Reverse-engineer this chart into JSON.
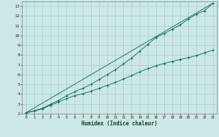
{
  "title": "",
  "xlabel": "Humidex (Indice chaleur)",
  "bg_color": "#cce8e6",
  "grid_color": "#aacfcc",
  "line_color": "#1a6b5a",
  "xlim": [
    -0.5,
    23.5
  ],
  "ylim": [
    2,
    13.5
  ],
  "xticks": [
    0,
    1,
    2,
    3,
    4,
    5,
    6,
    7,
    8,
    9,
    10,
    11,
    12,
    13,
    14,
    15,
    16,
    17,
    18,
    19,
    20,
    21,
    22,
    23
  ],
  "yticks": [
    2,
    3,
    4,
    5,
    6,
    7,
    8,
    9,
    10,
    11,
    12,
    13
  ],
  "line1_x": [
    0,
    1,
    2,
    3,
    4,
    5,
    6,
    7,
    8,
    9,
    10,
    11,
    12,
    13,
    14,
    15,
    16,
    17,
    18,
    19,
    20,
    21,
    22,
    23
  ],
  "line1_y": [
    2.1,
    2.25,
    2.5,
    2.85,
    3.2,
    3.55,
    3.85,
    4.05,
    4.3,
    4.6,
    4.9,
    5.2,
    5.55,
    5.9,
    6.3,
    6.6,
    6.9,
    7.15,
    7.35,
    7.55,
    7.75,
    7.95,
    8.25,
    8.5
  ],
  "line2_x": [
    0,
    1,
    2,
    3,
    4,
    5,
    6,
    7,
    8,
    9,
    10,
    11,
    12,
    13,
    14,
    15,
    16,
    17,
    18,
    19,
    20,
    21,
    22,
    23
  ],
  "line2_y": [
    2.1,
    2.3,
    2.55,
    2.95,
    3.35,
    3.85,
    4.25,
    4.6,
    5.0,
    5.5,
    6.0,
    6.5,
    7.1,
    7.7,
    8.4,
    9.1,
    9.8,
    10.2,
    10.65,
    11.1,
    11.7,
    12.2,
    12.55,
    13.3
  ],
  "line3_x": [
    0,
    23
  ],
  "line3_y": [
    2.1,
    13.3
  ]
}
